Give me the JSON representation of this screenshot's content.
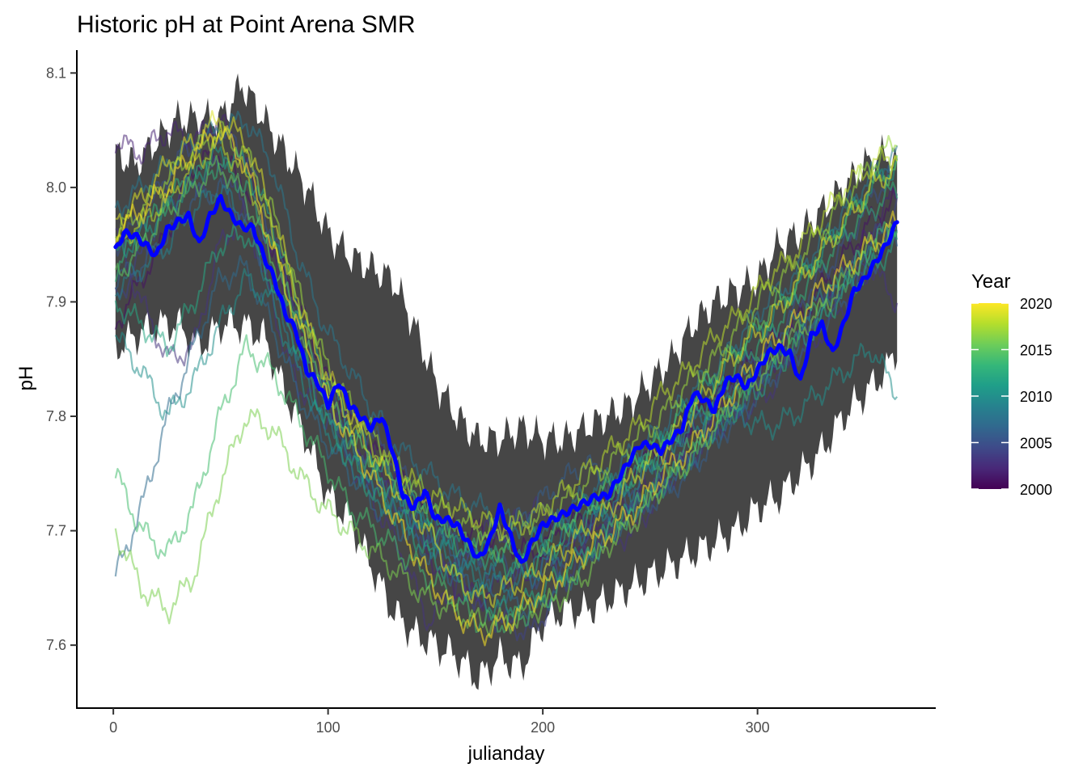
{
  "chart_data": {
    "type": "line",
    "title": "Historic pH at Point Arena SMR",
    "xlabel": "julianday",
    "ylabel": "pH",
    "xlim": [
      -17,
      383
    ],
    "ylim": [
      7.545,
      8.12
    ],
    "x_ticks": [
      0,
      100,
      200,
      300
    ],
    "y_ticks": [
      7.6,
      7.7,
      7.8,
      7.9,
      8.0,
      8.1
    ],
    "x_tick_labels": [
      "0",
      "100",
      "200",
      "300"
    ],
    "y_tick_labels": [
      "7.6",
      "7.7",
      "7.8",
      "7.9",
      "8.0",
      "8.1"
    ],
    "grid": false,
    "legend": {
      "title": "Year",
      "position": "right",
      "type": "colorbar",
      "range": [
        2000,
        2020
      ],
      "ticks": [
        2000,
        2005,
        2010,
        2015,
        2020
      ],
      "tick_labels": [
        "2000",
        "2005",
        "2010",
        "2015",
        "2020"
      ],
      "colors": [
        "#440154",
        "#482878",
        "#3E4A89",
        "#31688E",
        "#26828E",
        "#1F9E89",
        "#35B779",
        "#6DCD59",
        "#B4DE2C",
        "#FDE725"
      ]
    },
    "mean_series": {
      "color": "#0000FF",
      "x": [
        1,
        5,
        10,
        15,
        20,
        25,
        30,
        35,
        40,
        45,
        50,
        55,
        60,
        65,
        70,
        75,
        80,
        85,
        90,
        95,
        100,
        105,
        110,
        115,
        120,
        125,
        130,
        135,
        140,
        145,
        150,
        155,
        160,
        165,
        170,
        175,
        180,
        185,
        190,
        195,
        200,
        205,
        210,
        215,
        220,
        225,
        230,
        235,
        240,
        245,
        250,
        255,
        260,
        265,
        270,
        275,
        280,
        285,
        290,
        295,
        300,
        305,
        310,
        315,
        320,
        325,
        330,
        335,
        340,
        345,
        350,
        355,
        360,
        365
      ],
      "y": [
        7.945,
        7.96,
        7.958,
        7.95,
        7.94,
        7.963,
        7.97,
        7.975,
        7.95,
        7.975,
        7.99,
        7.975,
        7.965,
        7.965,
        7.94,
        7.92,
        7.89,
        7.875,
        7.84,
        7.83,
        7.81,
        7.83,
        7.81,
        7.8,
        7.79,
        7.8,
        7.77,
        7.73,
        7.72,
        7.735,
        7.71,
        7.71,
        7.705,
        7.69,
        7.675,
        7.69,
        7.72,
        7.695,
        7.67,
        7.69,
        7.705,
        7.71,
        7.715,
        7.72,
        7.725,
        7.73,
        7.73,
        7.745,
        7.76,
        7.775,
        7.775,
        7.77,
        7.78,
        7.79,
        7.82,
        7.815,
        7.805,
        7.83,
        7.835,
        7.825,
        7.84,
        7.855,
        7.86,
        7.855,
        7.83,
        7.87,
        7.88,
        7.855,
        7.88,
        7.91,
        7.92,
        7.935,
        7.95,
        7.97
      ]
    },
    "envelope": {
      "color": "#404040",
      "x": [
        1,
        10,
        20,
        30,
        40,
        50,
        60,
        70,
        80,
        90,
        100,
        110,
        120,
        130,
        140,
        150,
        160,
        170,
        180,
        190,
        200,
        210,
        220,
        230,
        240,
        250,
        260,
        270,
        280,
        290,
        300,
        310,
        320,
        330,
        340,
        350,
        360,
        365
      ],
      "upper": [
        8.03,
        8.02,
        8.04,
        8.06,
        8.06,
        8.06,
        8.09,
        8.06,
        8.03,
        8.0,
        7.96,
        7.94,
        7.93,
        7.92,
        7.88,
        7.83,
        7.8,
        7.78,
        7.78,
        7.79,
        7.78,
        7.78,
        7.79,
        7.8,
        7.81,
        7.83,
        7.85,
        7.88,
        7.9,
        7.91,
        7.92,
        7.95,
        7.96,
        7.98,
        8.0,
        8.02,
        8.03,
        8.02
      ],
      "lower": [
        7.86,
        7.87,
        7.88,
        7.88,
        7.86,
        7.88,
        7.88,
        7.87,
        7.82,
        7.78,
        7.73,
        7.71,
        7.67,
        7.63,
        7.61,
        7.6,
        7.59,
        7.57,
        7.59,
        7.58,
        7.62,
        7.63,
        7.63,
        7.64,
        7.65,
        7.66,
        7.67,
        7.68,
        7.69,
        7.7,
        7.72,
        7.73,
        7.75,
        7.77,
        7.8,
        7.82,
        7.84,
        7.86
      ]
    },
    "series": [
      {
        "year": 2001,
        "y": [
          7.88,
          7.92,
          7.96,
          8.02,
          8.03,
          8.0,
          7.95,
          7.9,
          7.84,
          7.8,
          7.77,
          7.74,
          7.72,
          7.7,
          7.7,
          7.69,
          7.68,
          7.7,
          7.71,
          7.73,
          7.76,
          7.77,
          7.79,
          7.82,
          7.84,
          7.86,
          7.88,
          7.91,
          7.94,
          7.97,
          7.99
        ]
      },
      {
        "year": 2002,
        "y": [
          8.04,
          8.03,
          8.05,
          8.04,
          8.06,
          8.02,
          7.94,
          7.87,
          7.82,
          7.78,
          7.76,
          7.73,
          7.68,
          7.65,
          7.64,
          7.66,
          7.66,
          7.68,
          7.69,
          7.71,
          7.73,
          7.75,
          7.78,
          7.8,
          7.83,
          7.84,
          7.87,
          7.9,
          7.93,
          7.96,
          8.0
        ]
      },
      {
        "year": 2003,
        "y": [
          7.96,
          7.9,
          7.85,
          7.86,
          7.95,
          7.98,
          7.9,
          7.82,
          7.83,
          7.76,
          7.72,
          7.68,
          7.62,
          7.65,
          7.7,
          7.7,
          7.72,
          7.71,
          7.7,
          7.69,
          7.7,
          7.74,
          7.76,
          7.79,
          7.8,
          7.82,
          7.85,
          7.87,
          7.9,
          7.93,
          7.9
        ]
      },
      {
        "year": 2004,
        "y": [
          7.9,
          7.94,
          7.99,
          8.0,
          8.02,
          7.98,
          7.93,
          7.85,
          7.8,
          7.77,
          7.74,
          7.72,
          7.69,
          7.67,
          7.63,
          7.62,
          7.61,
          7.65,
          7.68,
          7.7,
          7.72,
          7.74,
          7.77,
          7.79,
          7.81,
          7.84,
          7.86,
          7.89,
          7.92,
          7.95,
          7.98
        ]
      },
      {
        "year": 2005,
        "y": [
          7.95,
          7.97,
          8.01,
          8.04,
          8.05,
          8.03,
          7.96,
          7.89,
          7.83,
          7.8,
          7.78,
          7.75,
          7.72,
          7.69,
          7.67,
          7.67,
          7.66,
          7.67,
          7.7,
          7.72,
          7.74,
          7.76,
          7.79,
          7.81,
          7.84,
          7.86,
          7.89,
          7.92,
          7.95,
          7.99,
          8.02
        ]
      },
      {
        "year": 2006,
        "y": [
          7.92,
          7.93,
          7.96,
          7.99,
          8.0,
          7.97,
          7.92,
          7.87,
          7.81,
          7.78,
          7.75,
          7.72,
          7.7,
          7.68,
          7.68,
          7.7,
          7.72,
          7.74,
          7.76,
          7.74,
          7.72,
          7.73,
          7.75,
          7.78,
          7.8,
          7.83,
          7.85,
          7.88,
          7.9,
          7.93,
          7.96
        ]
      },
      {
        "year": 2007,
        "y": [
          7.66,
          7.72,
          7.8,
          7.86,
          7.92,
          7.93,
          7.88,
          7.82,
          7.78,
          7.75,
          7.72,
          7.7,
          7.68,
          7.66,
          7.65,
          7.64,
          7.63,
          7.65,
          7.67,
          7.7,
          7.72,
          7.74,
          7.76,
          7.78,
          7.81,
          7.84,
          7.86,
          7.89,
          7.92,
          7.95,
          7.97
        ]
      },
      {
        "year": 2008,
        "y": [
          7.98,
          8.0,
          8.02,
          8.04,
          8.05,
          8.06,
          8.02,
          7.94,
          7.88,
          7.84,
          7.8,
          7.77,
          7.75,
          7.73,
          7.72,
          7.71,
          7.7,
          7.71,
          7.73,
          7.75,
          7.77,
          7.79,
          7.82,
          7.84,
          7.87,
          7.9,
          7.92,
          7.95,
          7.98,
          8.01,
          8.03
        ]
      },
      {
        "year": 2009,
        "y": [
          7.91,
          7.93,
          7.95,
          7.98,
          8.0,
          7.97,
          7.91,
          7.85,
          7.8,
          7.77,
          7.74,
          7.72,
          7.7,
          7.68,
          7.66,
          7.65,
          7.66,
          7.68,
          7.7,
          7.72,
          7.74,
          7.77,
          7.79,
          7.81,
          7.83,
          7.85,
          7.88,
          7.9,
          7.92,
          7.94,
          7.96
        ]
      },
      {
        "year": 2010,
        "y": [
          7.87,
          7.84,
          7.8,
          7.83,
          7.88,
          7.92,
          7.9,
          7.84,
          7.79,
          7.76,
          7.73,
          7.71,
          7.69,
          7.67,
          7.66,
          7.66,
          7.67,
          7.69,
          7.71,
          7.73,
          7.75,
          7.77,
          7.79,
          7.8,
          7.8,
          7.79,
          7.8,
          7.82,
          7.84,
          7.86,
          7.82
        ]
      },
      {
        "year": 2011,
        "y": [
          7.94,
          7.96,
          7.98,
          8.01,
          8.03,
          8.02,
          7.97,
          7.9,
          7.84,
          7.79,
          7.76,
          7.73,
          7.71,
          7.69,
          7.68,
          7.68,
          7.69,
          7.7,
          7.72,
          7.74,
          7.76,
          7.78,
          7.81,
          7.83,
          7.86,
          7.88,
          7.91,
          7.94,
          7.97,
          8.0,
          8.02
        ]
      },
      {
        "year": 2012,
        "y": [
          7.9,
          7.88,
          7.86,
          7.9,
          7.95,
          7.96,
          7.92,
          7.86,
          7.8,
          7.76,
          7.73,
          7.71,
          7.68,
          7.66,
          7.64,
          7.63,
          7.64,
          7.66,
          7.68,
          7.7,
          7.72,
          7.74,
          7.76,
          7.79,
          7.81,
          7.83,
          7.86,
          7.88,
          7.91,
          7.93,
          7.95
        ]
      },
      {
        "year": 2013,
        "y": [
          7.93,
          7.96,
          7.99,
          8.01,
          8.02,
          8.0,
          7.95,
          7.88,
          7.82,
          7.78,
          7.75,
          7.73,
          7.71,
          7.69,
          7.68,
          7.67,
          7.67,
          7.69,
          7.71,
          7.73,
          7.75,
          7.77,
          7.8,
          7.82,
          7.85,
          7.87,
          7.9,
          7.93,
          7.96,
          7.98,
          8.0
        ]
      },
      {
        "year": 2014,
        "y": [
          7.75,
          7.7,
          7.68,
          7.72,
          7.8,
          7.86,
          7.84,
          7.8,
          7.76,
          7.72,
          7.7,
          7.68,
          7.66,
          7.64,
          7.62,
          7.62,
          7.63,
          7.65,
          7.67,
          7.7,
          7.72,
          7.75,
          7.77,
          7.8,
          7.82,
          7.85,
          7.87,
          7.9,
          7.92,
          7.95,
          7.97
        ]
      },
      {
        "year": 2015,
        "y": [
          7.92,
          7.95,
          7.98,
          8.0,
          8.02,
          7.99,
          7.94,
          7.88,
          7.82,
          7.78,
          7.76,
          7.74,
          7.72,
          7.7,
          7.69,
          7.68,
          7.68,
          7.7,
          7.72,
          7.74,
          7.76,
          7.78,
          7.81,
          7.84,
          7.86,
          7.89,
          7.91,
          7.94,
          7.97,
          8.0,
          8.02
        ]
      },
      {
        "year": 2016,
        "y": [
          7.7,
          7.65,
          7.63,
          7.66,
          7.74,
          7.8,
          7.79,
          7.75,
          7.72,
          7.7,
          7.68,
          7.66,
          7.64,
          7.63,
          7.62,
          7.62,
          7.63,
          7.64,
          7.66,
          7.69,
          7.71,
          7.74,
          7.76,
          7.79,
          7.82,
          7.84,
          7.87,
          7.89,
          7.92,
          7.95,
          7.96
        ]
      },
      {
        "year": 2017,
        "y": [
          7.96,
          7.98,
          8.01,
          8.03,
          8.05,
          8.03,
          7.98,
          7.91,
          7.85,
          7.81,
          7.78,
          7.75,
          7.73,
          7.71,
          7.7,
          7.7,
          7.71,
          7.72,
          7.74,
          7.76,
          7.78,
          7.8,
          7.83,
          7.85,
          7.88,
          7.91,
          7.93,
          7.96,
          7.99,
          8.02,
          8.04
        ]
      },
      {
        "year": 2018,
        "y": [
          7.95,
          7.97,
          7.99,
          8.02,
          8.04,
          8.01,
          7.96,
          7.9,
          7.84,
          7.8,
          7.77,
          7.75,
          7.73,
          7.72,
          7.71,
          7.7,
          7.71,
          7.73,
          7.75,
          7.77,
          7.79,
          7.82,
          7.84,
          7.87,
          7.89,
          7.92,
          7.94,
          7.97,
          8.0,
          8.02,
          8.03
        ]
      },
      {
        "year": 2019,
        "y": [
          7.97,
          7.99,
          8.02,
          8.04,
          8.06,
          8.04,
          7.98,
          7.9,
          7.84,
          7.8,
          7.76,
          7.73,
          7.7,
          7.66,
          7.64,
          7.65,
          7.66,
          7.68,
          7.7,
          7.72,
          7.75,
          7.77,
          7.8,
          7.83,
          7.86,
          7.88,
          7.91,
          7.94,
          7.97,
          8.0,
          8.02
        ]
      },
      {
        "year": 2020,
        "y": [
          7.96,
          7.98,
          8.0,
          8.03,
          8.05,
          8.02,
          7.95,
          7.88,
          7.82,
          7.78,
          7.74,
          7.7,
          7.66,
          7.63,
          7.61,
          7.62,
          7.64,
          7.66,
          7.68,
          7.7,
          7.72,
          7.75,
          7.77,
          7.8,
          7.83,
          7.86,
          7.88,
          7.91,
          7.93,
          7.95,
          7.97
        ]
      }
    ]
  }
}
